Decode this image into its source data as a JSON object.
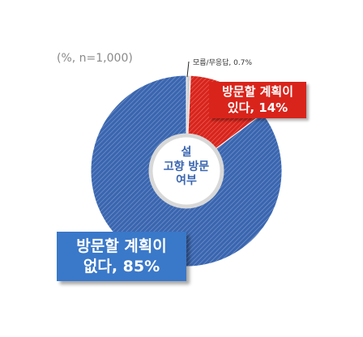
{
  "chart_data": {
    "type": "pie",
    "subtitle": "(%, n=1,000)",
    "center_label": "설\n고향 방문\n여부",
    "values": [
      0.7,
      14,
      85
    ],
    "value_labels": [
      "모름/무응답, 0.7%",
      "방문할 계획이\n있다, 14%",
      "방문할 계획이\n없다, 85%"
    ],
    "colors": [
      "#d0d0d0",
      "#d9241b",
      "#3a66b0"
    ]
  }
}
